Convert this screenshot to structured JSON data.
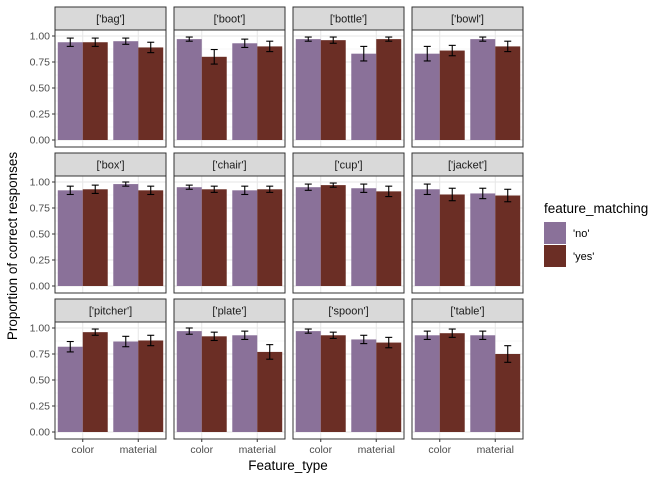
{
  "chart_data": {
    "type": "bar",
    "facet_layout": "4 columns x 3 rows",
    "xlabel": "Feature_type",
    "ylabel": "Proportion of correct responses",
    "categories": [
      "color",
      "material"
    ],
    "ylim": [
      0,
      1
    ],
    "yticks": [
      "0.00",
      "0.25",
      "0.50",
      "0.75",
      "1.00"
    ],
    "grid": true,
    "error_bars": true,
    "legend": {
      "title": "feature_matching",
      "placement": "right",
      "entries": [
        {
          "label": "'no'",
          "color": "#8a7199"
        },
        {
          "label": "'yes'",
          "color": "#6b2e25"
        }
      ]
    },
    "panels": [
      {
        "title": "['bag']",
        "no": [
          0.94,
          0.95
        ],
        "yes": [
          0.94,
          0.89
        ],
        "no_err": [
          0.04,
          0.03
        ],
        "yes_err": [
          0.04,
          0.05
        ]
      },
      {
        "title": "['boot']",
        "no": [
          0.97,
          0.93
        ],
        "yes": [
          0.8,
          0.9
        ],
        "no_err": [
          0.02,
          0.04
        ],
        "yes_err": [
          0.07,
          0.05
        ]
      },
      {
        "title": "['bottle']",
        "no": [
          0.97,
          0.83
        ],
        "yes": [
          0.96,
          0.97
        ],
        "no_err": [
          0.02,
          0.07
        ],
        "yes_err": [
          0.03,
          0.02
        ]
      },
      {
        "title": "['bowl']",
        "no": [
          0.83,
          0.97
        ],
        "yes": [
          0.86,
          0.9
        ],
        "no_err": [
          0.07,
          0.02
        ],
        "yes_err": [
          0.05,
          0.05
        ]
      },
      {
        "title": "['box']",
        "no": [
          0.92,
          0.98
        ],
        "yes": [
          0.93,
          0.92
        ],
        "no_err": [
          0.04,
          0.02
        ],
        "yes_err": [
          0.04,
          0.04
        ]
      },
      {
        "title": "['chair']",
        "no": [
          0.95,
          0.92
        ],
        "yes": [
          0.93,
          0.93
        ],
        "no_err": [
          0.02,
          0.04
        ],
        "yes_err": [
          0.03,
          0.03
        ]
      },
      {
        "title": "['cup']",
        "no": [
          0.95,
          0.94
        ],
        "yes": [
          0.97,
          0.91
        ],
        "no_err": [
          0.03,
          0.04
        ],
        "yes_err": [
          0.02,
          0.05
        ]
      },
      {
        "title": "['jacket']",
        "no": [
          0.93,
          0.89
        ],
        "yes": [
          0.88,
          0.87
        ],
        "no_err": [
          0.05,
          0.05
        ],
        "yes_err": [
          0.06,
          0.06
        ]
      },
      {
        "title": "['pitcher']",
        "no": [
          0.82,
          0.87
        ],
        "yes": [
          0.96,
          0.88
        ],
        "no_err": [
          0.05,
          0.05
        ],
        "yes_err": [
          0.03,
          0.05
        ]
      },
      {
        "title": "['plate']",
        "no": [
          0.97,
          0.93
        ],
        "yes": [
          0.92,
          0.77
        ],
        "no_err": [
          0.03,
          0.04
        ],
        "yes_err": [
          0.04,
          0.07
        ]
      },
      {
        "title": "['spoon']",
        "no": [
          0.97,
          0.89
        ],
        "yes": [
          0.93,
          0.86
        ],
        "no_err": [
          0.02,
          0.04
        ],
        "yes_err": [
          0.03,
          0.05
        ]
      },
      {
        "title": "['table']",
        "no": [
          0.93,
          0.93
        ],
        "yes": [
          0.95,
          0.75
        ],
        "no_err": [
          0.04,
          0.04
        ],
        "yes_err": [
          0.04,
          0.08
        ]
      }
    ]
  }
}
